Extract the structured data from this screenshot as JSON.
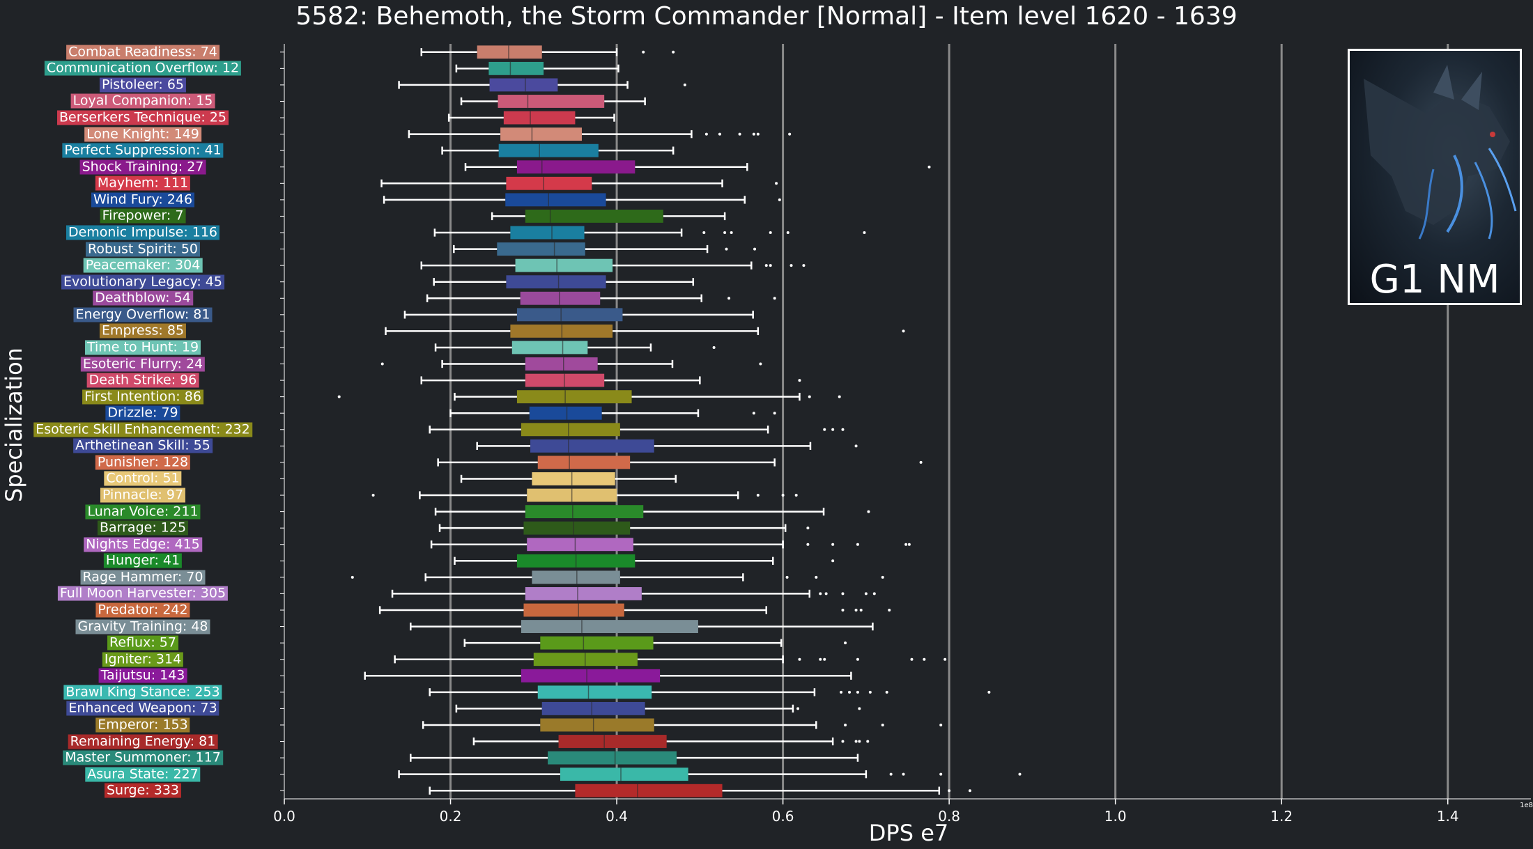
{
  "title": "5582: Behemoth, the Storm Commander [Normal] - Item level 1620 - 1639",
  "thumbnail_text": "G1 NM",
  "colors": {
    "background": "#202327",
    "whisker": "#ffffff",
    "gridline": "#8a8a8a"
  },
  "chart_data": {
    "type": "box",
    "orientation": "horizontal",
    "title": "5582: Behemoth, the Storm Commander [Normal] - Item level 1620 - 1639",
    "xlabel": "DPS e7",
    "ylabel": "Specialization",
    "x_scale_note": "1e8",
    "xlim": [
      0,
      1.5
    ],
    "xticks": [
      "0.0",
      "0.2",
      "0.4",
      "0.6",
      "0.8",
      "1.0",
      "1.2",
      "1.4"
    ],
    "grid": "vertical",
    "categories": [
      {
        "label": "Combat Readiness: 74",
        "color": "#c97e6c",
        "whisker_low": 0.165,
        "q1": 0.232,
        "median": 0.27,
        "q3": 0.31,
        "whisker_high": 0.4,
        "outliers": [
          0.432,
          0.468
        ]
      },
      {
        "label": "Communication Overflow: 12",
        "color": "#2e9e8c",
        "whisker_low": 0.207,
        "q1": 0.246,
        "median": 0.272,
        "q3": 0.312,
        "whisker_high": 0.402,
        "outliers": []
      },
      {
        "label": "Pistoleer: 65",
        "color": "#4b4a9e",
        "whisker_low": 0.138,
        "q1": 0.247,
        "median": 0.29,
        "q3": 0.329,
        "whisker_high": 0.413,
        "outliers": [
          0.482
        ]
      },
      {
        "label": "Loyal Companion: 15",
        "color": "#cc5a78",
        "whisker_low": 0.213,
        "q1": 0.257,
        "median": 0.293,
        "q3": 0.385,
        "whisker_high": 0.434,
        "outliers": []
      },
      {
        "label": "Berserkers Technique: 25",
        "color": "#cc3a4e",
        "whisker_low": 0.198,
        "q1": 0.264,
        "median": 0.296,
        "q3": 0.35,
        "whisker_high": 0.397,
        "outliers": []
      },
      {
        "label": "Lone Knight: 149",
        "color": "#d28a78",
        "whisker_low": 0.15,
        "q1": 0.26,
        "median": 0.298,
        "q3": 0.358,
        "whisker_high": 0.49,
        "outliers": [
          0.508,
          0.524,
          0.548,
          0.565,
          0.57,
          0.608
        ]
      },
      {
        "label": "Perfect Suppression: 41",
        "color": "#1a7fa0",
        "whisker_low": 0.19,
        "q1": 0.258,
        "median": 0.307,
        "q3": 0.378,
        "whisker_high": 0.468,
        "outliers": []
      },
      {
        "label": "Shock Training: 27",
        "color": "#8a1a8c",
        "whisker_low": 0.218,
        "q1": 0.28,
        "median": 0.31,
        "q3": 0.422,
        "whisker_high": 0.557,
        "outliers": [
          0.776
        ]
      },
      {
        "label": "Mayhem: 111",
        "color": "#d43a4a",
        "whisker_low": 0.117,
        "q1": 0.267,
        "median": 0.312,
        "q3": 0.37,
        "whisker_high": 0.527,
        "outliers": [
          0.592
        ]
      },
      {
        "label": "Wind Fury: 246",
        "color": "#1a4a9a",
        "whisker_low": 0.12,
        "q1": 0.266,
        "median": 0.318,
        "q3": 0.387,
        "whisker_high": 0.554,
        "outliers": [
          0.596
        ]
      },
      {
        "label": "Firepower: 7",
        "color": "#2e6a1a",
        "whisker_low": 0.25,
        "q1": 0.29,
        "median": 0.32,
        "q3": 0.456,
        "whisker_high": 0.53,
        "outliers": []
      },
      {
        "label": "Demonic Impulse: 116",
        "color": "#1a7fa0",
        "whisker_low": 0.181,
        "q1": 0.272,
        "median": 0.322,
        "q3": 0.361,
        "whisker_high": 0.478,
        "outliers": [
          0.505,
          0.53,
          0.538,
          0.585,
          0.606,
          0.698
        ]
      },
      {
        "label": "Robust Spirit: 50",
        "color": "#3a6a8e",
        "whisker_low": 0.204,
        "q1": 0.256,
        "median": 0.325,
        "q3": 0.362,
        "whisker_high": 0.509,
        "outliers": [
          0.532,
          0.566
        ]
      },
      {
        "label": "Peacemaker: 304",
        "color": "#6ec4b4",
        "whisker_low": 0.165,
        "q1": 0.278,
        "median": 0.328,
        "q3": 0.395,
        "whisker_high": 0.562,
        "outliers": [
          0.58,
          0.585,
          0.61,
          0.625
        ]
      },
      {
        "label": "Evolutionary Legacy: 45",
        "color": "#3e4a96",
        "whisker_low": 0.18,
        "q1": 0.267,
        "median": 0.33,
        "q3": 0.387,
        "whisker_high": 0.492,
        "outliers": []
      },
      {
        "label": "Deathblow: 54",
        "color": "#9a4a9c",
        "whisker_low": 0.172,
        "q1": 0.284,
        "median": 0.331,
        "q3": 0.38,
        "whisker_high": 0.502,
        "outliers": [
          0.535,
          0.59
        ]
      },
      {
        "label": "Energy Overflow: 81",
        "color": "#3a5a8a",
        "whisker_low": 0.145,
        "q1": 0.28,
        "median": 0.333,
        "q3": 0.407,
        "whisker_high": 0.564,
        "outliers": []
      },
      {
        "label": "Empress: 85",
        "color": "#a0782a",
        "whisker_low": 0.122,
        "q1": 0.272,
        "median": 0.334,
        "q3": 0.395,
        "whisker_high": 0.57,
        "outliers": [
          0.745
        ]
      },
      {
        "label": "Time to Hunt: 19",
        "color": "#6ec4b4",
        "whisker_low": 0.182,
        "q1": 0.274,
        "median": 0.335,
        "q3": 0.365,
        "whisker_high": 0.441,
        "outliers": [
          0.517
        ]
      },
      {
        "label": "Esoteric Flurry: 24",
        "color": "#a04a9c",
        "whisker_low": 0.19,
        "q1": 0.29,
        "median": 0.336,
        "q3": 0.377,
        "whisker_high": 0.467,
        "outliers": [
          0.118,
          0.573
        ]
      },
      {
        "label": "Death Strike: 96",
        "color": "#d04a6a",
        "whisker_low": 0.165,
        "q1": 0.29,
        "median": 0.337,
        "q3": 0.385,
        "whisker_high": 0.5,
        "outliers": [
          0.62
        ]
      },
      {
        "label": "First Intention: 86",
        "color": "#8a8a1a",
        "whisker_low": 0.205,
        "q1": 0.28,
        "median": 0.338,
        "q3": 0.418,
        "whisker_high": 0.62,
        "outliers": [
          0.066,
          0.632,
          0.668
        ]
      },
      {
        "label": "Drizzle: 79",
        "color": "#1a4a9a",
        "whisker_low": 0.2,
        "q1": 0.295,
        "median": 0.34,
        "q3": 0.382,
        "whisker_high": 0.498,
        "outliers": [
          0.565,
          0.59
        ]
      },
      {
        "label": "Esoteric Skill Enhancement: 232",
        "color": "#8a8a1a",
        "whisker_low": 0.175,
        "q1": 0.285,
        "median": 0.342,
        "q3": 0.404,
        "whisker_high": 0.582,
        "outliers": [
          0.65,
          0.66,
          0.672
        ]
      },
      {
        "label": "Arthetinean Skill: 55",
        "color": "#3e4a96",
        "whisker_low": 0.232,
        "q1": 0.296,
        "median": 0.342,
        "q3": 0.445,
        "whisker_high": 0.633,
        "outliers": [
          0.688
        ]
      },
      {
        "label": "Punisher: 128",
        "color": "#d06a4a",
        "whisker_low": 0.185,
        "q1": 0.305,
        "median": 0.343,
        "q3": 0.416,
        "whisker_high": 0.59,
        "outliers": [
          0.766
        ]
      },
      {
        "label": "Control: 51",
        "color": "#e8c878",
        "whisker_low": 0.213,
        "q1": 0.298,
        "median": 0.346,
        "q3": 0.398,
        "whisker_high": 0.471,
        "outliers": []
      },
      {
        "label": "Pinnacle: 97",
        "color": "#e0c070",
        "whisker_low": 0.163,
        "q1": 0.292,
        "median": 0.346,
        "q3": 0.4,
        "whisker_high": 0.546,
        "outliers": [
          0.107,
          0.57,
          0.6,
          0.616
        ]
      },
      {
        "label": "Lunar Voice: 211",
        "color": "#2a8a2a",
        "whisker_low": 0.182,
        "q1": 0.29,
        "median": 0.347,
        "q3": 0.432,
        "whisker_high": 0.649,
        "outliers": [
          0.703
        ]
      },
      {
        "label": "Barrage: 125",
        "color": "#2e5a1a",
        "whisker_low": 0.187,
        "q1": 0.288,
        "median": 0.348,
        "q3": 0.416,
        "whisker_high": 0.603,
        "outliers": [
          0.63
        ]
      },
      {
        "label": "Nights Edge: 415",
        "color": "#b068c0",
        "whisker_low": 0.177,
        "q1": 0.292,
        "median": 0.35,
        "q3": 0.42,
        "whisker_high": 0.6,
        "outliers": [
          0.63,
          0.66,
          0.69,
          0.748,
          0.752
        ]
      },
      {
        "label": "Hunger: 41",
        "color": "#1a8a2a",
        "whisker_low": 0.205,
        "q1": 0.28,
        "median": 0.351,
        "q3": 0.422,
        "whisker_high": 0.588,
        "outliers": [
          0.66
        ]
      },
      {
        "label": "Rage Hammer: 70",
        "color": "#7a8e96",
        "whisker_low": 0.17,
        "q1": 0.298,
        "median": 0.352,
        "q3": 0.404,
        "whisker_high": 0.552,
        "outliers": [
          0.082,
          0.605,
          0.64,
          0.72
        ]
      },
      {
        "label": "Full Moon Harvester: 305",
        "color": "#b07ec8",
        "whisker_low": 0.13,
        "q1": 0.29,
        "median": 0.353,
        "q3": 0.43,
        "whisker_high": 0.632,
        "outliers": [
          0.645,
          0.652,
          0.672,
          0.7,
          0.71
        ]
      },
      {
        "label": "Predator: 242",
        "color": "#c8683e",
        "whisker_low": 0.115,
        "q1": 0.288,
        "median": 0.354,
        "q3": 0.409,
        "whisker_high": 0.58,
        "outliers": [
          0.672,
          0.688,
          0.694,
          0.728
        ]
      },
      {
        "label": "Gravity Training: 48",
        "color": "#7a8e96",
        "whisker_low": 0.152,
        "q1": 0.285,
        "median": 0.358,
        "q3": 0.498,
        "whisker_high": 0.708,
        "outliers": []
      },
      {
        "label": "Reflux: 57",
        "color": "#5a9a1a",
        "whisker_low": 0.217,
        "q1": 0.308,
        "median": 0.36,
        "q3": 0.444,
        "whisker_high": 0.598,
        "outliers": [
          0.675
        ]
      },
      {
        "label": "Igniter: 314",
        "color": "#6a9a1a",
        "whisker_low": 0.133,
        "q1": 0.3,
        "median": 0.362,
        "q3": 0.425,
        "whisker_high": 0.6,
        "outliers": [
          0.62,
          0.645,
          0.65,
          0.69,
          0.755,
          0.77,
          0.795
        ]
      },
      {
        "label": "Taijutsu: 143",
        "color": "#8a1a9a",
        "whisker_low": 0.097,
        "q1": 0.285,
        "median": 0.364,
        "q3": 0.452,
        "whisker_high": 0.682,
        "outliers": []
      },
      {
        "label": "Brawl King Stance: 253",
        "color": "#3ab8b0",
        "whisker_low": 0.175,
        "q1": 0.305,
        "median": 0.366,
        "q3": 0.442,
        "whisker_high": 0.638,
        "outliers": [
          0.67,
          0.68,
          0.69,
          0.705,
          0.725,
          0.848
        ]
      },
      {
        "label": "Enhanced Weapon: 73",
        "color": "#3e4a96",
        "whisker_low": 0.207,
        "q1": 0.31,
        "median": 0.37,
        "q3": 0.434,
        "whisker_high": 0.612,
        "outliers": [
          0.618,
          0.692
        ]
      },
      {
        "label": "Emperor: 153",
        "color": "#9a7a2a",
        "whisker_low": 0.167,
        "q1": 0.308,
        "median": 0.372,
        "q3": 0.445,
        "whisker_high": 0.64,
        "outliers": [
          0.675,
          0.72,
          0.79
        ]
      },
      {
        "label": "Remaining Energy: 81",
        "color": "#a82a2a",
        "whisker_low": 0.228,
        "q1": 0.33,
        "median": 0.385,
        "q3": 0.46,
        "whisker_high": 0.66,
        "outliers": [
          0.672,
          0.688,
          0.692,
          0.702
        ]
      },
      {
        "label": "Master Summoner: 117",
        "color": "#2a8a7a",
        "whisker_low": 0.152,
        "q1": 0.317,
        "median": 0.398,
        "q3": 0.472,
        "whisker_high": 0.69,
        "outliers": []
      },
      {
        "label": "Asura State: 227",
        "color": "#3ab8a8",
        "whisker_low": 0.138,
        "q1": 0.332,
        "median": 0.405,
        "q3": 0.486,
        "whisker_high": 0.7,
        "outliers": [
          0.73,
          0.745,
          0.79,
          0.885
        ]
      },
      {
        "label": "Surge: 333",
        "color": "#b42a2a",
        "whisker_low": 0.175,
        "q1": 0.35,
        "median": 0.425,
        "q3": 0.527,
        "whisker_high": 0.788,
        "outliers": [
          0.8,
          0.825
        ]
      }
    ]
  }
}
